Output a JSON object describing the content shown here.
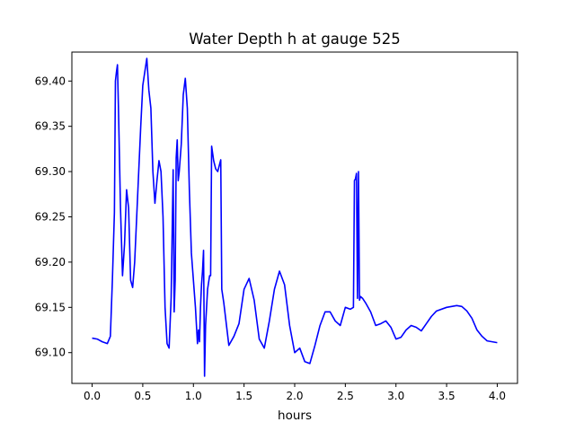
{
  "chart_data": {
    "type": "line",
    "title": "Water Depth h at gauge 525",
    "xlabel": "hours",
    "ylabel": "",
    "xlim": [
      -0.2,
      4.2
    ],
    "ylim": [
      69.066,
      69.432
    ],
    "xticks": [
      0.0,
      0.5,
      1.0,
      1.5,
      2.0,
      2.5,
      3.0,
      3.5,
      4.0
    ],
    "xtick_labels": [
      "0.0",
      "0.5",
      "1.0",
      "1.5",
      "2.0",
      "2.5",
      "3.0",
      "3.5",
      "4.0"
    ],
    "yticks": [
      69.1,
      69.15,
      69.2,
      69.25,
      69.3,
      69.35,
      69.4
    ],
    "ytick_labels": [
      "69.10",
      "69.15",
      "69.20",
      "69.25",
      "69.30",
      "69.35",
      "69.40"
    ],
    "grid": false,
    "series": [
      {
        "color": "#0000ff",
        "x": [
          0.0,
          0.05,
          0.1,
          0.15,
          0.18,
          0.2,
          0.22,
          0.23,
          0.24,
          0.25,
          0.26,
          0.28,
          0.3,
          0.32,
          0.34,
          0.36,
          0.38,
          0.4,
          0.42,
          0.44,
          0.46,
          0.48,
          0.5,
          0.52,
          0.54,
          0.56,
          0.58,
          0.6,
          0.62,
          0.64,
          0.66,
          0.68,
          0.7,
          0.72,
          0.74,
          0.76,
          0.78,
          0.8,
          0.81,
          0.82,
          0.83,
          0.84,
          0.85,
          0.86,
          0.88,
          0.9,
          0.92,
          0.94,
          0.96,
          0.98,
          1.0,
          1.02,
          1.04,
          1.05,
          1.06,
          1.07,
          1.08,
          1.09,
          1.1,
          1.11,
          1.12,
          1.14,
          1.16,
          1.17,
          1.18,
          1.19,
          1.2,
          1.22,
          1.24,
          1.27,
          1.28,
          1.3,
          1.35,
          1.4,
          1.45,
          1.5,
          1.55,
          1.6,
          1.65,
          1.7,
          1.75,
          1.8,
          1.85,
          1.9,
          1.95,
          2.0,
          2.05,
          2.1,
          2.15,
          2.2,
          2.25,
          2.3,
          2.35,
          2.4,
          2.45,
          2.5,
          2.55,
          2.58,
          2.59,
          2.6,
          2.61,
          2.62,
          2.63,
          2.64,
          2.65,
          2.67,
          2.7,
          2.75,
          2.8,
          2.85,
          2.9,
          2.95,
          3.0,
          3.05,
          3.1,
          3.15,
          3.2,
          3.25,
          3.3,
          3.35,
          3.4,
          3.5,
          3.6,
          3.65,
          3.7,
          3.75,
          3.8,
          3.85,
          3.9,
          3.95,
          4.0
        ],
        "y": [
          69.116,
          69.115,
          69.112,
          69.11,
          69.118,
          69.18,
          69.255,
          69.4,
          69.41,
          69.418,
          69.37,
          69.26,
          69.185,
          69.22,
          69.28,
          69.26,
          69.18,
          69.172,
          69.2,
          69.25,
          69.3,
          69.35,
          69.395,
          69.41,
          69.425,
          69.39,
          69.37,
          69.3,
          69.265,
          69.29,
          69.312,
          69.3,
          69.25,
          69.15,
          69.11,
          69.105,
          69.16,
          69.302,
          69.145,
          69.18,
          69.315,
          69.335,
          69.29,
          69.3,
          69.33,
          69.385,
          69.403,
          69.37,
          69.28,
          69.21,
          69.18,
          69.15,
          69.11,
          69.125,
          69.112,
          69.15,
          69.175,
          69.19,
          69.213,
          69.074,
          69.13,
          69.17,
          69.185,
          69.185,
          69.328,
          69.32,
          69.312,
          69.303,
          69.3,
          69.313,
          69.17,
          69.155,
          69.108,
          69.118,
          69.132,
          69.17,
          69.182,
          69.158,
          69.115,
          69.105,
          69.135,
          69.17,
          69.19,
          69.175,
          69.13,
          69.1,
          69.105,
          69.09,
          69.088,
          69.108,
          69.13,
          69.145,
          69.145,
          69.135,
          69.13,
          69.15,
          69.148,
          69.15,
          69.29,
          69.292,
          69.298,
          69.16,
          69.3,
          69.158,
          69.162,
          69.16,
          69.155,
          69.145,
          69.13,
          69.132,
          69.135,
          69.128,
          69.115,
          69.117,
          69.125,
          69.13,
          69.128,
          69.124,
          69.132,
          69.14,
          69.146,
          69.15,
          69.152,
          69.151,
          69.146,
          69.138,
          69.125,
          69.118,
          69.113,
          69.112,
          69.111
        ]
      }
    ]
  }
}
